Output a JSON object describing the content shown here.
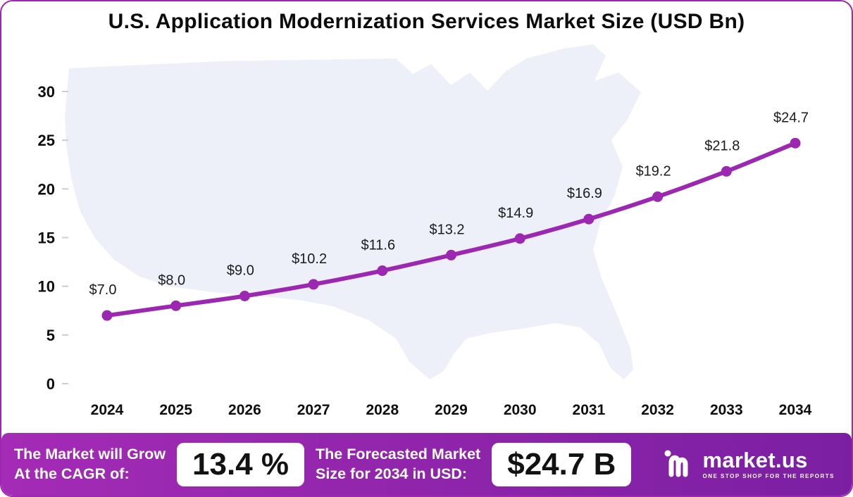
{
  "title": "U.S. Application Modernization Services Market Size (USD Bn)",
  "chart_data": {
    "type": "line",
    "x": [
      "2024",
      "2025",
      "2026",
      "2027",
      "2028",
      "2029",
      "2030",
      "2031",
      "2032",
      "2033",
      "2034"
    ],
    "values": [
      7.0,
      8.0,
      9.0,
      10.2,
      11.6,
      13.2,
      14.9,
      16.9,
      19.2,
      21.8,
      24.7
    ],
    "point_labels": [
      "$7.0",
      "$8.0",
      "$9.0",
      "$10.2",
      "$11.6",
      "$13.2",
      "$14.9",
      "$16.9",
      "$19.2",
      "$21.8",
      "$24.7"
    ],
    "title": "U.S. Application Modernization Services Market Size (USD Bn)",
    "xlabel": "",
    "ylabel": "",
    "ylim": [
      0,
      30
    ],
    "yticks": [
      0,
      5,
      10,
      15,
      20,
      25,
      30
    ],
    "grid": false,
    "legend": false,
    "line_color": "#9C27B0",
    "background": "us-map-silhouette"
  },
  "footer": {
    "cagr_label_line1": "The Market will Grow",
    "cagr_label_line2": "At the CAGR of:",
    "cagr_value": "13.4 %",
    "forecast_label_line1": "The Forecasted Market",
    "forecast_label_line2": "Size for 2034 in USD:",
    "forecast_value": "$24.7 B",
    "brand_name": "market.us",
    "brand_tagline": "ONE STOP SHOP FOR THE REPORTS"
  },
  "colors": {
    "accent": "#9C27B0",
    "banner_start": "#A42BB5",
    "banner_end": "#7B1FA2",
    "map_fill": "#EDF0F9",
    "text": "#0e0e0e"
  }
}
